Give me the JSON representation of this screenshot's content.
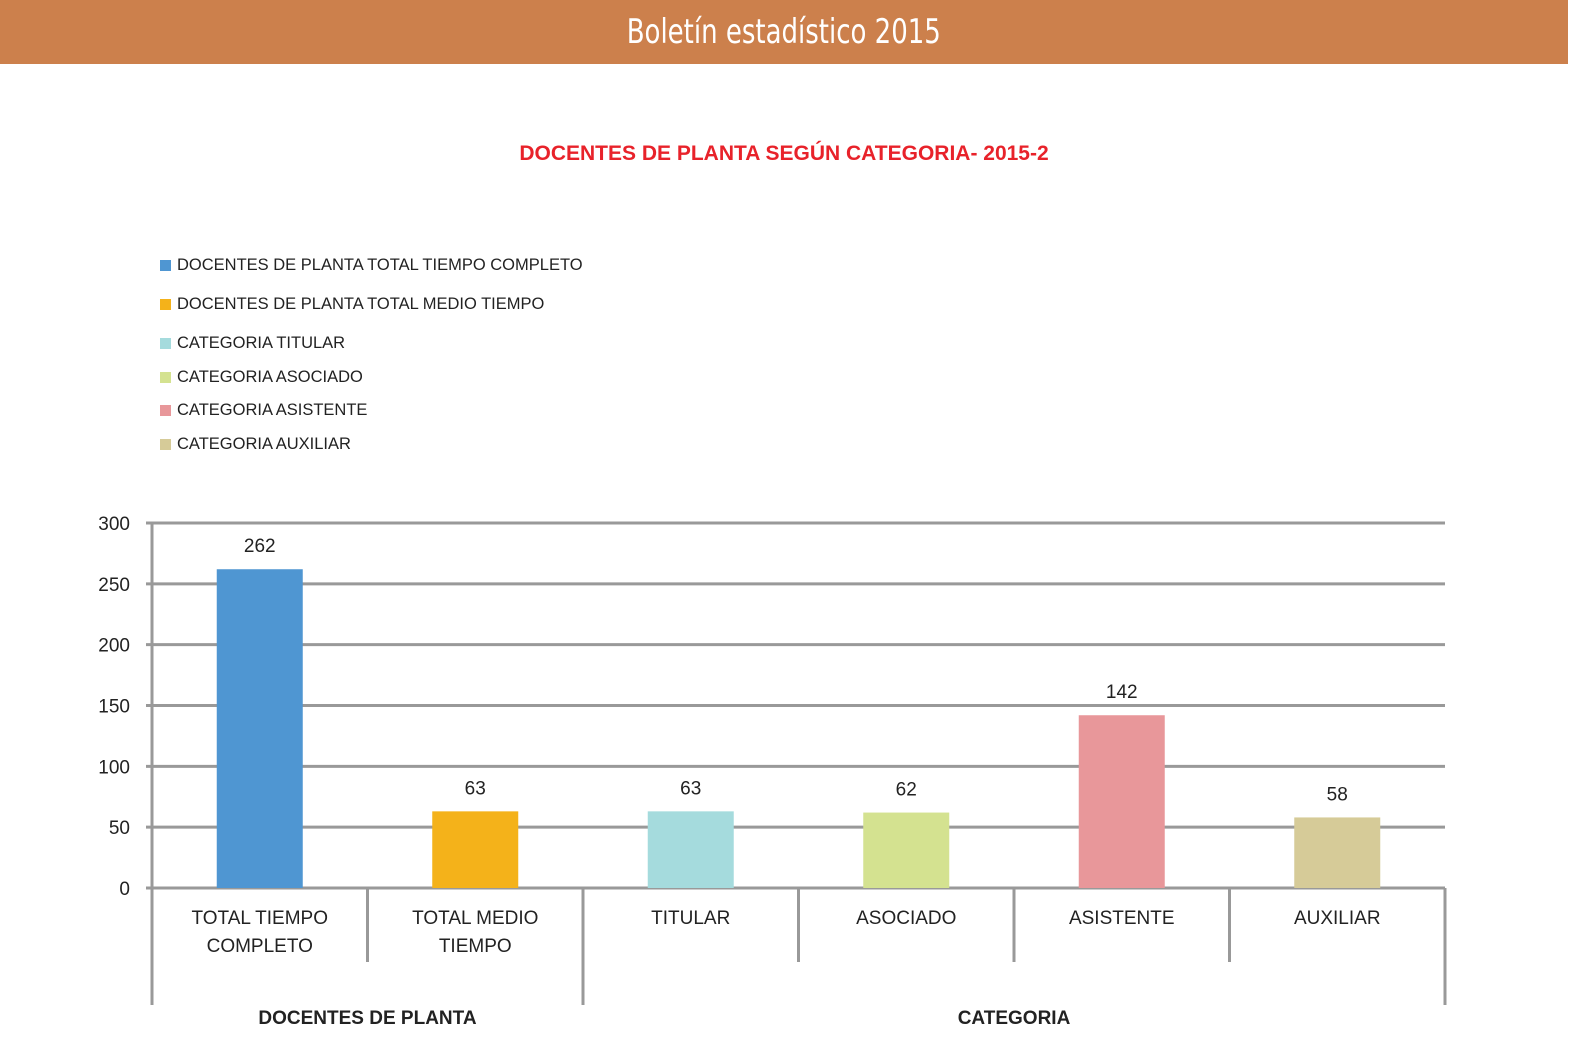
{
  "header": {
    "title": "Boletín estadístico 2015"
  },
  "chart_data": {
    "type": "bar",
    "title": "DOCENTES DE PLANTA SEGÚN CATEGORIA- 2015-2",
    "categories": [
      "TOTAL TIEMPO COMPLETO",
      "TOTAL MEDIO TIEMPO",
      "TITULAR",
      "ASOCIADO",
      "ASISTENTE",
      "AUXILIAR"
    ],
    "category_lines": [
      [
        "TOTAL TIEMPO",
        "COMPLETO"
      ],
      [
        "TOTAL MEDIO",
        "TIEMPO"
      ],
      [
        "TITULAR"
      ],
      [
        "ASOCIADO"
      ],
      [
        "ASISTENTE"
      ],
      [
        "AUXILIAR"
      ]
    ],
    "groups": [
      {
        "label": "DOCENTES DE PLANTA",
        "count": 2
      },
      {
        "label": "CATEGORIA",
        "count": 4
      }
    ],
    "values": [
      262,
      63,
      63,
      62,
      142,
      58
    ],
    "colors": [
      "#4f96d2",
      "#f4b21a",
      "#a5dbdd",
      "#d4e290",
      "#e8979a",
      "#d6cb98"
    ],
    "legend": [
      "DOCENTES DE PLANTA TOTAL TIEMPO COMPLETO",
      "DOCENTES DE PLANTA TOTAL MEDIO TIEMPO",
      "CATEGORIA TITULAR",
      "CATEGORIA ASOCIADO",
      "CATEGORIA ASISTENTE",
      "CATEGORIA AUXILIAR"
    ],
    "legend_position": "top-left",
    "yticks": [
      0,
      50,
      100,
      150,
      200,
      250,
      300
    ],
    "ylim": [
      0,
      300
    ],
    "grid": true
  }
}
